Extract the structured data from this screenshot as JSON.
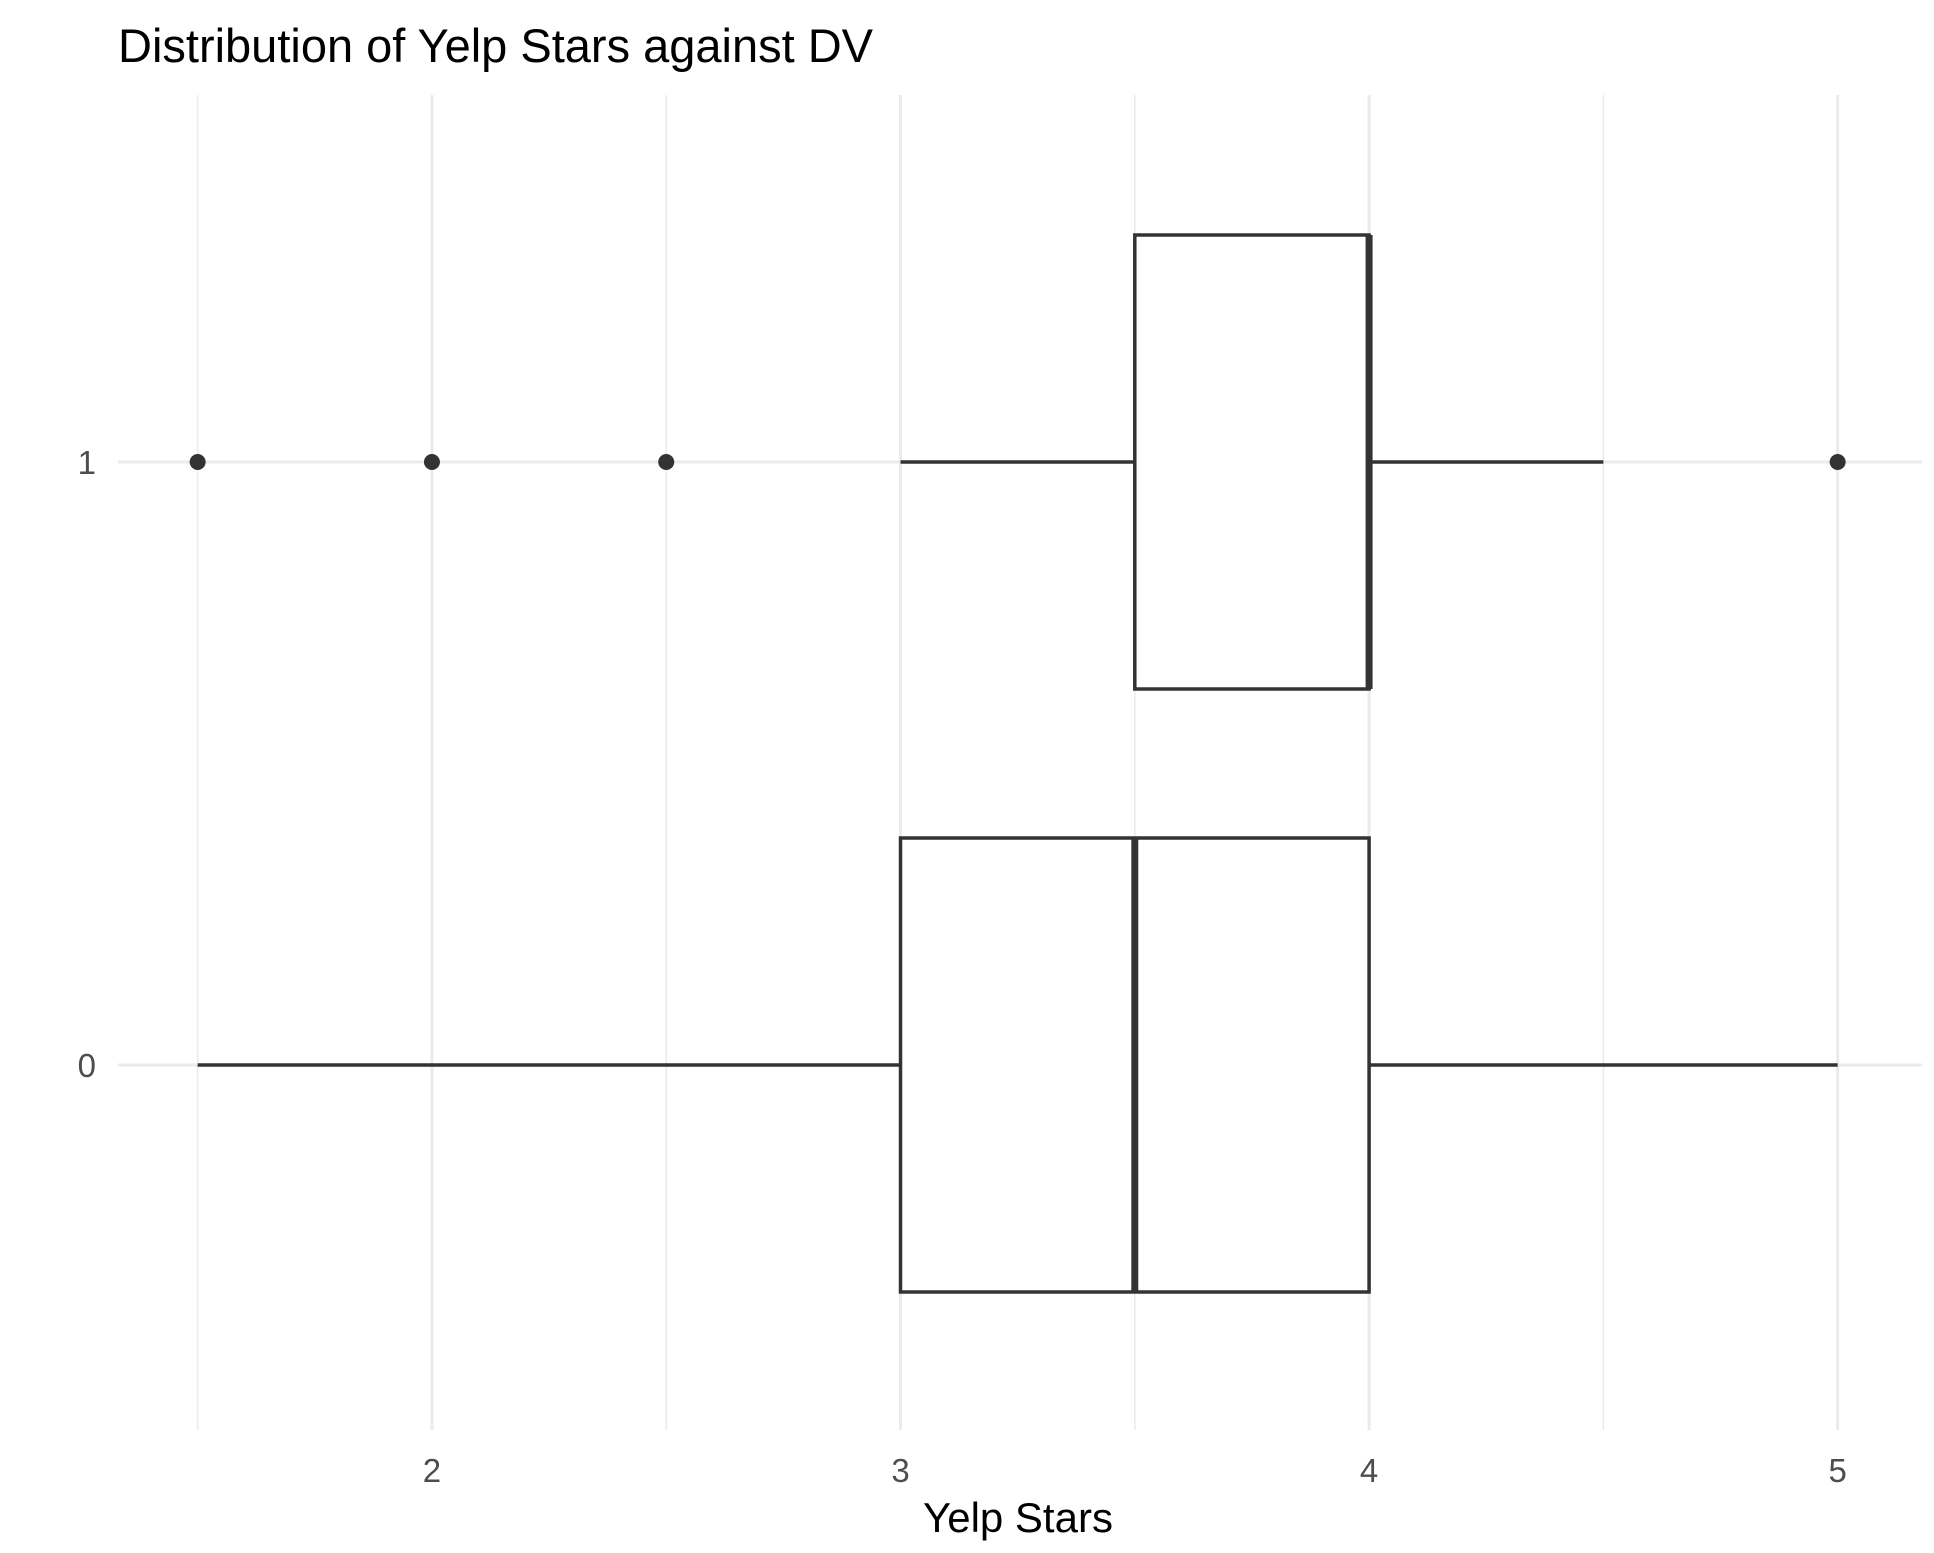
{
  "chart_data": {
    "type": "boxplot",
    "orientation": "horizontal",
    "title": "Distribution of Yelp Stars against DV",
    "xlabel": "Yelp Stars",
    "ylabel": "",
    "xlim": [
      1.33,
      5.18
    ],
    "x_ticks": [
      2,
      3,
      4,
      5
    ],
    "x_minor_ticks": [
      1.5,
      2.5,
      3.5,
      4.5
    ],
    "categories": [
      "0",
      "1"
    ],
    "grid": true,
    "legend": "none",
    "colors": {
      "stroke": "#333333",
      "fill": "#ffffff",
      "grid": "#ebebeb",
      "tick_text": "#4d4d4d"
    },
    "boxes": [
      {
        "category": "0",
        "whisker_low": 1.5,
        "q1": 3.0,
        "median": 3.5,
        "q3": 4.0,
        "whisker_high": 5.0,
        "outliers": []
      },
      {
        "category": "1",
        "whisker_low": 3.0,
        "q1": 3.5,
        "median": 4.0,
        "q3": 4.0,
        "whisker_high": 4.5,
        "outliers": [
          1.5,
          2.0,
          2.5,
          5.0
        ]
      }
    ]
  }
}
